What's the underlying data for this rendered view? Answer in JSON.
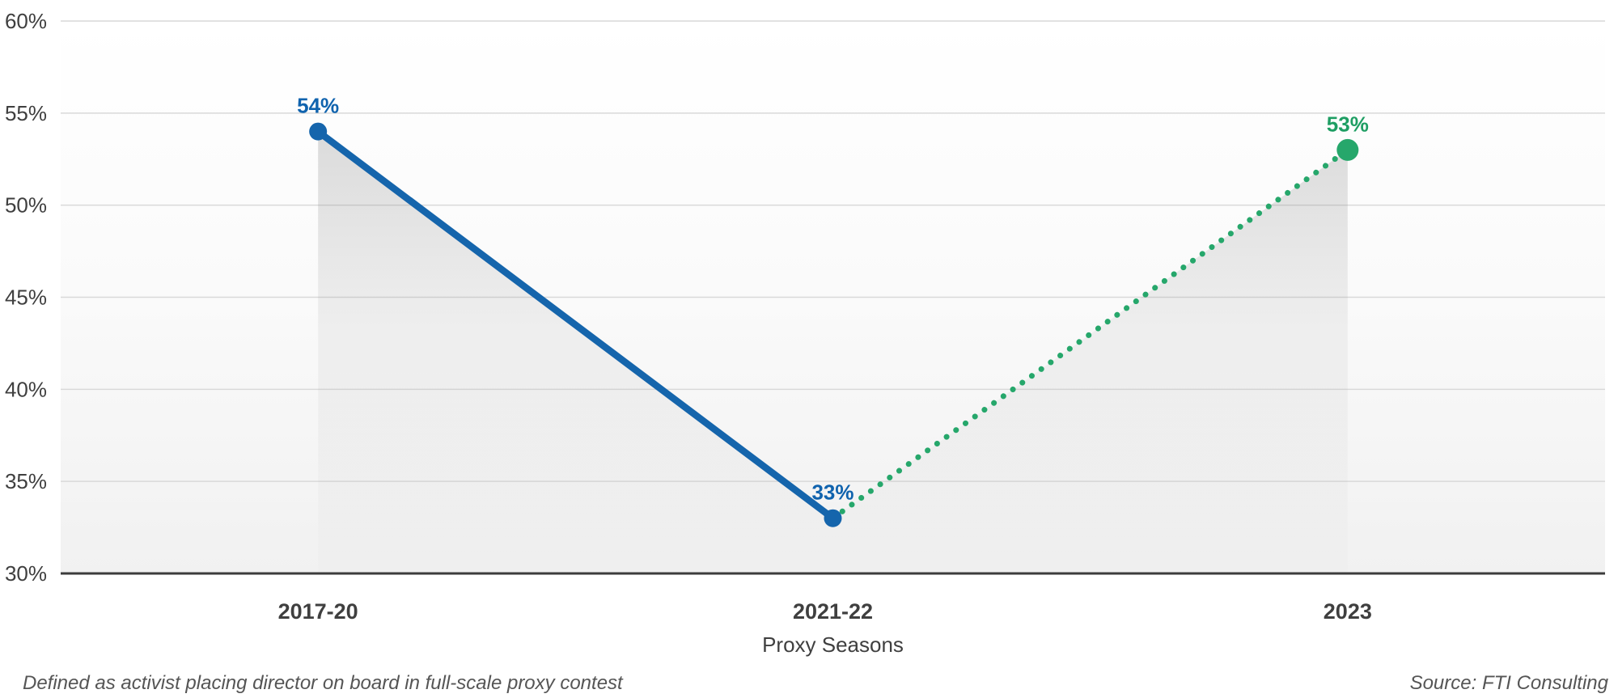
{
  "chart_data": {
    "type": "line",
    "title": "",
    "categories": [
      "2017-20",
      "2021-22",
      "2023"
    ],
    "values": [
      54,
      33,
      53
    ],
    "point_labels": [
      "54%",
      "33%",
      "53%"
    ],
    "point_colors": [
      "#1565ac",
      "#1565ac",
      "#26a76b"
    ],
    "point_label_colors": [
      "#1063ae",
      "#1063ae",
      "#1e9e63"
    ],
    "series": [
      {
        "name": "proxy-contest-success-solid",
        "line_style": "solid",
        "color": "#1565ac",
        "points": [
          {
            "x": "2017-20",
            "y": 54
          },
          {
            "x": "2021-22",
            "y": 33
          }
        ]
      },
      {
        "name": "proxy-contest-success-dotted",
        "line_style": "dotted",
        "color": "#26a76b",
        "points": [
          {
            "x": "2021-22",
            "y": 33
          },
          {
            "x": "2023",
            "y": 53
          }
        ]
      }
    ],
    "xlabel": "Proxy Seasons",
    "ylabel": "",
    "ylim": [
      30,
      60
    ],
    "yticks": [
      {
        "value": 60,
        "label": "60%"
      },
      {
        "value": 55,
        "label": "55%"
      },
      {
        "value": 50,
        "label": "50%"
      },
      {
        "value": 45,
        "label": "45%"
      },
      {
        "value": 40,
        "label": "40%"
      },
      {
        "value": 35,
        "label": "35%"
      },
      {
        "value": 30,
        "label": "30%"
      }
    ],
    "grid": true,
    "legend": "none",
    "area_fill": "gray-gradient-under-line",
    "colors": {
      "gridline": "#d9d9d9",
      "axis_line": "#3c3c3c",
      "tick_text": "#3f3f3f",
      "note_text": "#555555"
    }
  },
  "notes": {
    "footnote": "Defined as activist placing director on board in full-scale proxy contest",
    "source": "Source: FTI Consulting"
  }
}
